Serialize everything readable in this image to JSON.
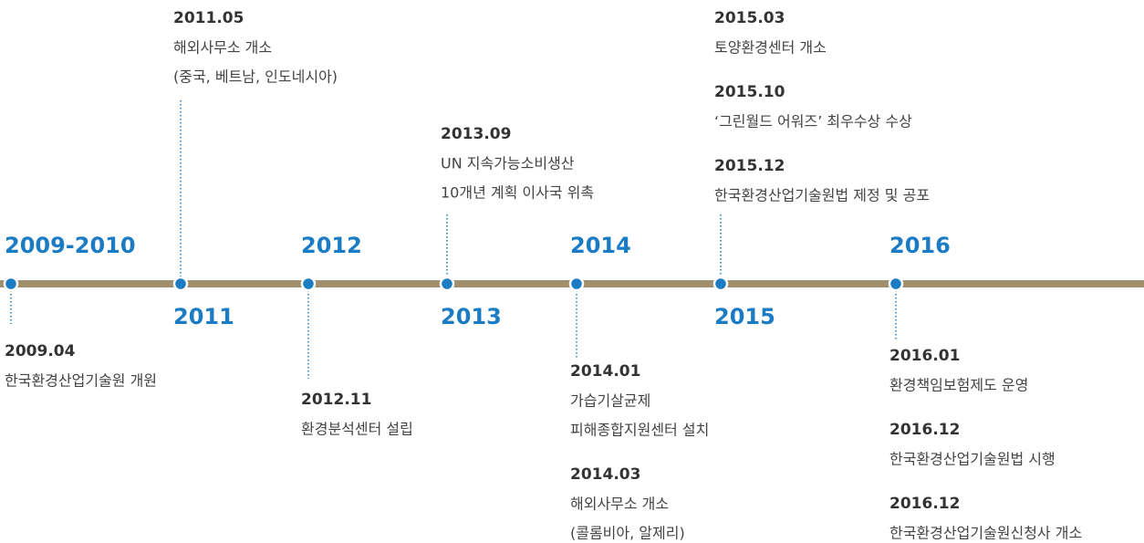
{
  "timeline": {
    "years": [
      {
        "year": "2009-2010",
        "events": [
          {
            "date": "2009.04",
            "lines": [
              "한국환경산업기술원 개원"
            ]
          }
        ]
      },
      {
        "year": "2011",
        "events": [
          {
            "date": "2011.05",
            "lines": [
              "해외사무소 개소",
              "(중국, 베트남, 인도네시아)"
            ]
          }
        ]
      },
      {
        "year": "2012",
        "events": [
          {
            "date": "2012.11",
            "lines": [
              "환경분석센터 설립"
            ]
          }
        ]
      },
      {
        "year": "2013",
        "events": [
          {
            "date": "2013.09",
            "lines": [
              "UN 지속가능소비생산",
              "10개년 계획 이사국 위촉"
            ]
          }
        ]
      },
      {
        "year": "2014",
        "events": [
          {
            "date": "2014.01",
            "lines": [
              "가습기살균제",
              "피해종합지원센터 설치"
            ]
          },
          {
            "date": "2014.03",
            "lines": [
              "해외사무소 개소",
              "(콜롬비아, 알제리)"
            ]
          }
        ]
      },
      {
        "year": "2015",
        "events": [
          {
            "date": "2015.03",
            "lines": [
              "토양환경센터 개소"
            ]
          },
          {
            "date": "2015.10",
            "lines": [
              "‘그린월드 어워즈’ 최우수상 수상"
            ]
          },
          {
            "date": "2015.12",
            "lines": [
              "한국환경산업기술원법 제정 및 공포"
            ]
          }
        ]
      },
      {
        "year": "2016",
        "events": [
          {
            "date": "2016.01",
            "lines": [
              "환경책임보험제도 운영"
            ]
          },
          {
            "date": "2016.12",
            "lines": [
              "한국환경산업기술원법 시행"
            ]
          },
          {
            "date": "2016.12",
            "lines": [
              "한국환경산업기술원신청사 개소"
            ]
          }
        ]
      }
    ]
  }
}
